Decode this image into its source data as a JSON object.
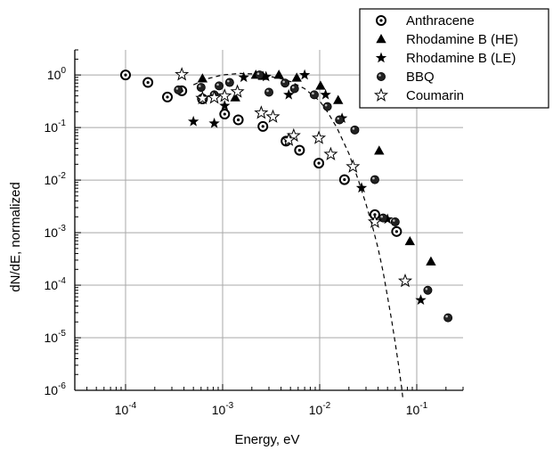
{
  "chart_data": {
    "type": "scatter",
    "xlabel": "Energy, eV",
    "ylabel": "dN/dE, normalized",
    "x_scale": "log",
    "y_scale": "log",
    "xlim": [
      3e-05,
      0.3
    ],
    "ylim": [
      1e-06,
      3
    ],
    "grid": true,
    "legend_position": "top-right",
    "x_ticks": [
      {
        "v": 0.0001,
        "m": "10",
        "e": "-4"
      },
      {
        "v": 0.001,
        "m": "10",
        "e": "-3"
      },
      {
        "v": 0.01,
        "m": "10",
        "e": "-2"
      },
      {
        "v": 0.1,
        "m": "10",
        "e": "-1"
      }
    ],
    "y_ticks": [
      {
        "v": 1e-06,
        "m": "10",
        "e": "-6"
      },
      {
        "v": 1e-05,
        "m": "10",
        "e": "-5"
      },
      {
        "v": 0.0001,
        "m": "10",
        "e": "-4"
      },
      {
        "v": 0.001,
        "m": "10",
        "e": "-3"
      },
      {
        "v": 0.01,
        "m": "10",
        "e": "-2"
      },
      {
        "v": 0.1,
        "m": "10",
        "e": "-1"
      },
      {
        "v": 1,
        "m": "10",
        "e": "0"
      }
    ],
    "series": [
      {
        "name": "Anthracene",
        "marker": "circle-dot",
        "points": [
          [
            0.0001,
            1.0
          ],
          [
            0.00017,
            0.72
          ],
          [
            0.00027,
            0.38
          ],
          [
            0.00038,
            0.5
          ],
          [
            0.00062,
            0.35
          ],
          [
            0.00105,
            0.18
          ],
          [
            0.00145,
            0.14
          ],
          [
            0.0026,
            0.105
          ],
          [
            0.0045,
            0.055
          ],
          [
            0.0062,
            0.037
          ],
          [
            0.0098,
            0.021
          ],
          [
            0.018,
            0.0102
          ],
          [
            0.037,
            0.0022
          ],
          [
            0.062,
            0.00105
          ]
        ]
      },
      {
        "name": "Rhodamine B (HE)",
        "marker": "triangle",
        "points": [
          [
            0.00062,
            0.85
          ],
          [
            0.00135,
            0.37
          ],
          [
            0.0022,
            1.0
          ],
          [
            0.0026,
            0.95
          ],
          [
            0.0038,
            1.0
          ],
          [
            0.0058,
            0.88
          ],
          [
            0.0102,
            0.62
          ],
          [
            0.0155,
            0.33
          ],
          [
            0.041,
            0.036
          ],
          [
            0.085,
            0.00068
          ],
          [
            0.14,
            0.00028
          ]
        ]
      },
      {
        "name": "Rhodamine B (LE)",
        "marker": "star",
        "points": [
          [
            0.0005,
            0.13
          ],
          [
            0.00082,
            0.12
          ],
          [
            0.00105,
            0.26
          ],
          [
            0.00165,
            0.9
          ],
          [
            0.0028,
            0.93
          ],
          [
            0.0048,
            0.42
          ],
          [
            0.007,
            1.0
          ],
          [
            0.0115,
            0.42
          ],
          [
            0.017,
            0.15
          ],
          [
            0.027,
            0.0071
          ],
          [
            0.05,
            0.0018
          ],
          [
            0.11,
            5.2e-05
          ]
        ]
      },
      {
        "name": "BBQ",
        "marker": "ball",
        "points": [
          [
            0.00035,
            0.52
          ],
          [
            0.0006,
            0.58
          ],
          [
            0.00082,
            0.42
          ],
          [
            0.00092,
            0.62
          ],
          [
            0.00118,
            0.72
          ],
          [
            0.0024,
            1.0
          ],
          [
            0.003,
            0.47
          ],
          [
            0.0044,
            0.7
          ],
          [
            0.0055,
            0.55
          ],
          [
            0.0088,
            0.42
          ],
          [
            0.012,
            0.25
          ],
          [
            0.016,
            0.14
          ],
          [
            0.023,
            0.09
          ],
          [
            0.037,
            0.0102
          ],
          [
            0.045,
            0.0019
          ],
          [
            0.06,
            0.0016
          ],
          [
            0.13,
            8e-05
          ],
          [
            0.21,
            2.4e-05
          ]
        ]
      },
      {
        "name": "Coumarin",
        "marker": "open-star",
        "points": [
          [
            0.00038,
            1.02
          ],
          [
            0.00062,
            0.36
          ],
          [
            0.00082,
            0.37
          ],
          [
            0.00105,
            0.4
          ],
          [
            0.00142,
            0.48
          ],
          [
            0.0025,
            0.19
          ],
          [
            0.0033,
            0.16
          ],
          [
            0.0054,
            0.07
          ],
          [
            0.0048,
            0.058
          ],
          [
            0.0098,
            0.063
          ],
          [
            0.013,
            0.031
          ],
          [
            0.022,
            0.018
          ],
          [
            0.037,
            0.0016
          ],
          [
            0.076,
            0.00012
          ]
        ]
      }
    ],
    "fit_curve": {
      "style": "dashed",
      "points": [
        [
          0.0005,
          0.65
        ],
        [
          0.0007,
          0.85
        ],
        [
          0.001,
          1.0
        ],
        [
          0.0015,
          1.07
        ],
        [
          0.002,
          1.05
        ],
        [
          0.003,
          0.95
        ],
        [
          0.004,
          0.85
        ],
        [
          0.005,
          0.75
        ],
        [
          0.007,
          0.55
        ],
        [
          0.01,
          0.32
        ],
        [
          0.012,
          0.2
        ],
        [
          0.015,
          0.1
        ],
        [
          0.02,
          0.032
        ],
        [
          0.025,
          0.01
        ],
        [
          0.03,
          0.0035
        ],
        [
          0.035,
          0.0013
        ],
        [
          0.04,
          0.0005
        ],
        [
          0.045,
          0.00018
        ],
        [
          0.05,
          6e-05
        ],
        [
          0.055,
          2.2e-05
        ],
        [
          0.06,
          8e-06
        ],
        [
          0.065,
          3e-06
        ],
        [
          0.07,
          1.1e-06
        ],
        [
          0.072,
          7e-07
        ]
      ]
    }
  }
}
